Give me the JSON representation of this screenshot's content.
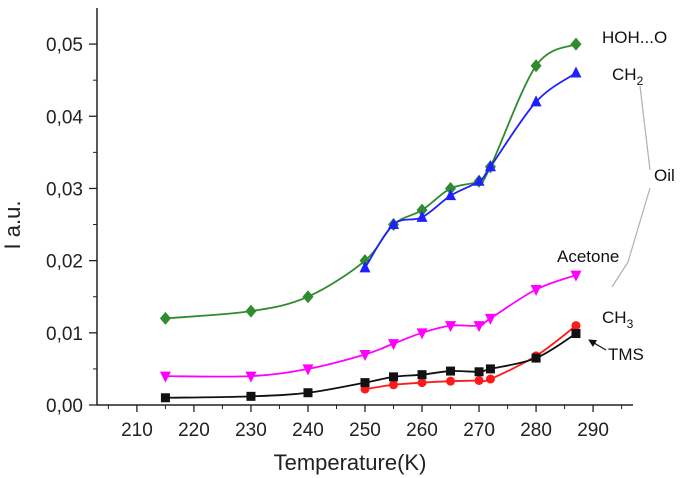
{
  "chart_data": {
    "type": "line",
    "xlabel": "Temperature(K)",
    "ylabel": "I a.u.",
    "xlim": [
      203,
      297
    ],
    "ylim": [
      0,
      0.055
    ],
    "x_ticks": [
      210,
      220,
      230,
      240,
      250,
      260,
      270,
      280,
      290
    ],
    "x_tick_labels": [
      "210",
      "220",
      "230",
      "240",
      "250",
      "260",
      "270",
      "280",
      "290"
    ],
    "y_ticks": [
      0,
      0.01,
      0.02,
      0.03,
      0.04,
      0.05
    ],
    "y_tick_labels": [
      "0,00",
      "0,01",
      "0,02",
      "0,03",
      "0,04",
      "0,05"
    ],
    "grid": false,
    "series": [
      {
        "name": "HOH...O",
        "color": "#2e8b2e",
        "marker": "diamond",
        "x": [
          215,
          230,
          240,
          250,
          255,
          260,
          265,
          270,
          272,
          280,
          287
        ],
        "y": [
          0.012,
          0.013,
          0.015,
          0.02,
          0.025,
          0.027,
          0.03,
          0.031,
          0.033,
          0.047,
          0.05
        ]
      },
      {
        "name": "CH2",
        "color": "#1f1fff",
        "marker": "triangle-up",
        "x": [
          250,
          255,
          260,
          265,
          270,
          272,
          280,
          287
        ],
        "y": [
          0.019,
          0.025,
          0.026,
          0.029,
          0.031,
          0.033,
          0.042,
          0.046
        ]
      },
      {
        "name": "Acetone",
        "color": "#ff00ff",
        "marker": "triangle-down",
        "x": [
          215,
          230,
          240,
          250,
          255,
          260,
          265,
          270,
          272,
          280,
          287
        ],
        "y": [
          0.004,
          0.004,
          0.005,
          0.007,
          0.0085,
          0.01,
          0.011,
          0.011,
          0.012,
          0.016,
          0.018
        ]
      },
      {
        "name": "CH3",
        "color": "#ff1a1a",
        "marker": "circle",
        "x": [
          250,
          255,
          260,
          265,
          270,
          272,
          280,
          287
        ],
        "y": [
          0.0022,
          0.0028,
          0.0031,
          0.0033,
          0.0034,
          0.0036,
          0.0068,
          0.011
        ]
      },
      {
        "name": "TMS",
        "color": "#111111",
        "marker": "square",
        "x": [
          215,
          230,
          240,
          250,
          255,
          260,
          265,
          270,
          272,
          280,
          287
        ],
        "y": [
          0.001,
          0.0012,
          0.0017,
          0.0031,
          0.0039,
          0.0042,
          0.0047,
          0.0046,
          0.005,
          0.0065,
          0.0099
        ]
      }
    ],
    "annotations": [
      {
        "text": "HOH...O",
        "series": "HOH...O"
      },
      {
        "text": "CH",
        "subscript": "2",
        "series": "CH2"
      },
      {
        "text": "Oil",
        "brackets": [
          "CH2",
          "Acetone"
        ]
      },
      {
        "text": "Acetone",
        "series": "Acetone"
      },
      {
        "text": "CH",
        "subscript": "3",
        "series": "CH3"
      },
      {
        "text": "TMS",
        "series": "TMS",
        "arrow": true
      }
    ],
    "style": {
      "axis_color": "#222222",
      "bracket_color": "#b0b0b0"
    }
  }
}
